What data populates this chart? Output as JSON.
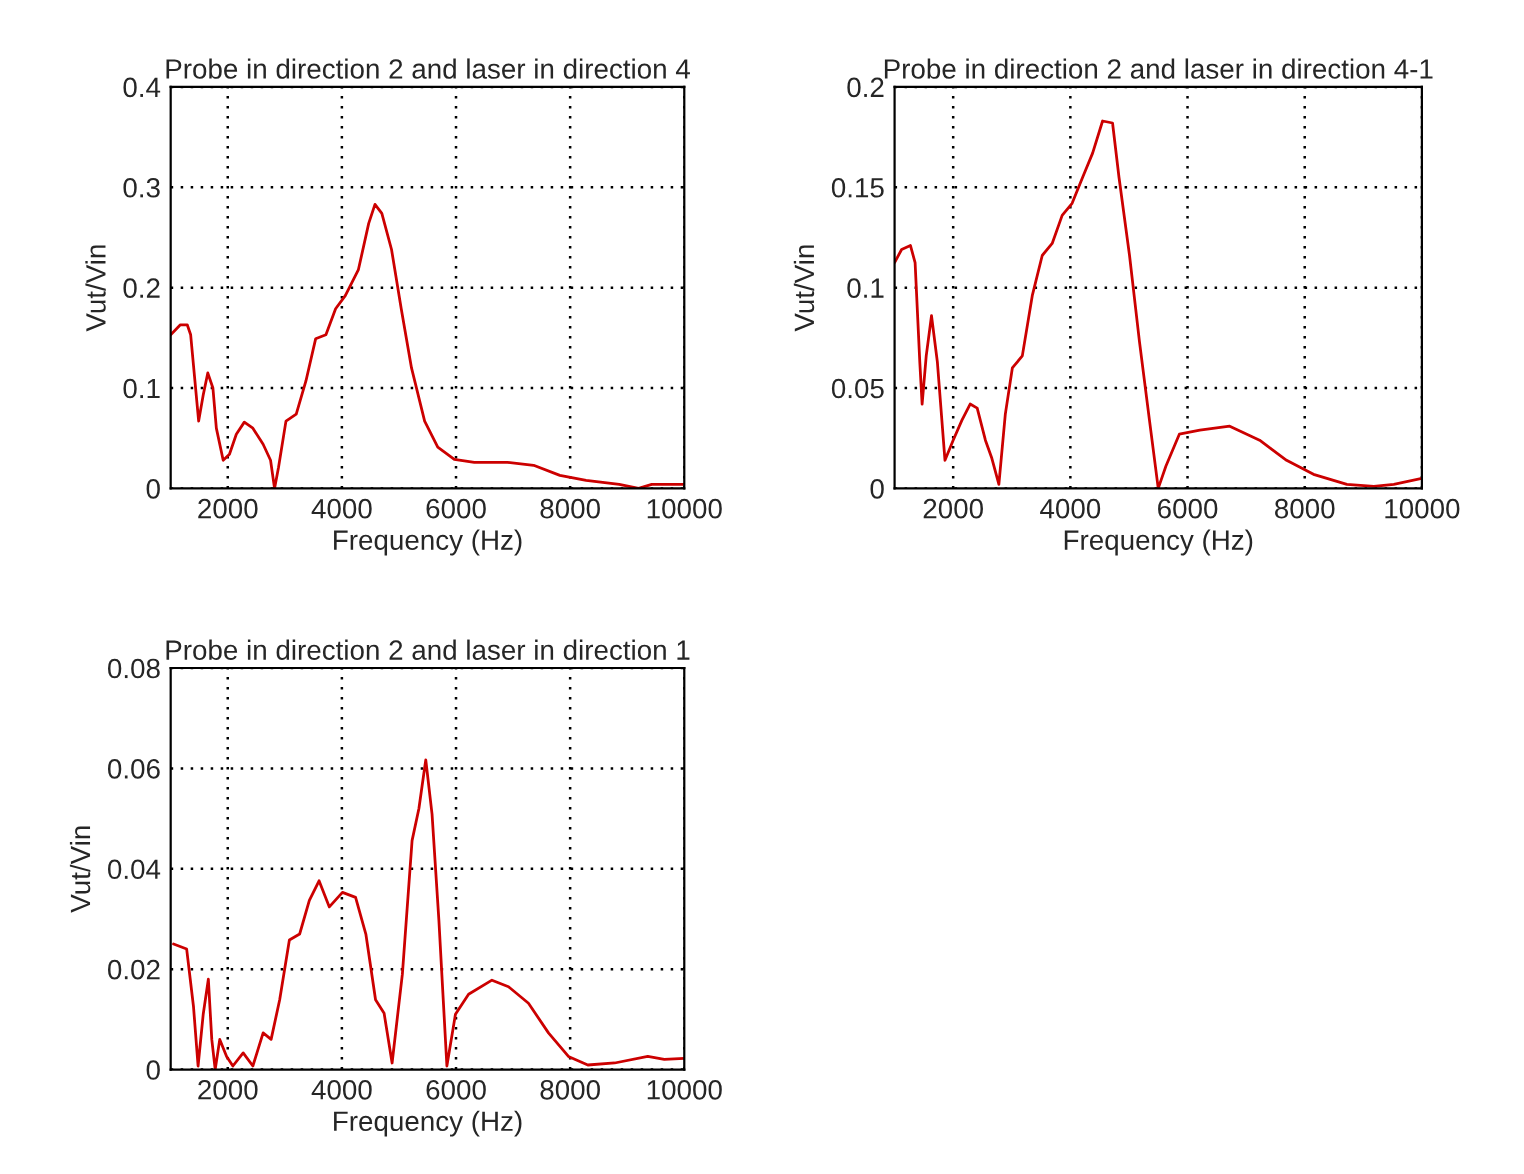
{
  "chart_data": [
    {
      "type": "line",
      "title": "Probe in direction 2 and laser in direction 4",
      "xlabel": "Frequency (Hz)",
      "ylabel": "Vut/Vin",
      "xlim": [
        1000,
        10000
      ],
      "xticks": [
        2000,
        4000,
        6000,
        8000,
        10000
      ],
      "ylim": [
        0,
        0.4
      ],
      "yticks": [
        0,
        0.1,
        0.2,
        0.3,
        0.4
      ],
      "grid": true,
      "line_style": "solid",
      "marker": "none",
      "series": [
        {
          "color": "#cc0000",
          "x": [
            1000,
            1170,
            1290,
            1350,
            1490,
            1570,
            1650,
            1740,
            1800,
            1920,
            2030,
            2150,
            2290,
            2440,
            2620,
            2750,
            2820,
            2890,
            3020,
            3200,
            3370,
            3540,
            3720,
            3890,
            4060,
            4290,
            4470,
            4580,
            4700,
            4870,
            5040,
            5220,
            5450,
            5680,
            5970,
            6320,
            6900,
            7360,
            7820,
            8280,
            8860,
            9200,
            9430,
            10000
          ],
          "values": [
            0.153,
            0.163,
            0.163,
            0.153,
            0.067,
            0.093,
            0.115,
            0.1,
            0.06,
            0.028,
            0.034,
            0.054,
            0.066,
            0.06,
            0.044,
            0.028,
            0.0,
            0.021,
            0.067,
            0.074,
            0.107,
            0.149,
            0.153,
            0.179,
            0.192,
            0.218,
            0.264,
            0.283,
            0.274,
            0.238,
            0.179,
            0.12,
            0.067,
            0.041,
            0.029,
            0.026,
            0.026,
            0.023,
            0.013,
            0.008,
            0.004,
            0.0,
            0.004,
            0.004
          ]
        }
      ]
    },
    {
      "type": "line",
      "title": "Probe in direction 2 and laser in direction 4-1",
      "xlabel": "Frequency (Hz)",
      "ylabel": "Vut/Vin",
      "xlim": [
        1000,
        10000
      ],
      "xticks": [
        2000,
        4000,
        6000,
        8000,
        10000
      ],
      "ylim": [
        0,
        0.2
      ],
      "yticks": [
        0,
        0.05,
        0.1,
        0.15,
        0.2
      ],
      "grid": true,
      "line_style": "solid",
      "marker": "none",
      "series": [
        {
          "color": "#cc0000",
          "x": [
            1000,
            1120,
            1270,
            1350,
            1430,
            1470,
            1540,
            1630,
            1730,
            1860,
            2000,
            2150,
            2290,
            2410,
            2550,
            2660,
            2780,
            2890,
            3010,
            3180,
            3350,
            3520,
            3690,
            3860,
            4030,
            4210,
            4380,
            4550,
            4720,
            4830,
            5010,
            5180,
            5350,
            5500,
            5630,
            5860,
            6210,
            6720,
            7230,
            7690,
            8150,
            8720,
            9180,
            9520,
            10000
          ],
          "values": [
            0.1125,
            0.119,
            0.121,
            0.1125,
            0.063,
            0.042,
            0.066,
            0.086,
            0.063,
            0.014,
            0.024,
            0.034,
            0.042,
            0.04,
            0.024,
            0.015,
            0.002,
            0.037,
            0.06,
            0.066,
            0.096,
            0.116,
            0.122,
            0.136,
            0.142,
            0.155,
            0.167,
            0.183,
            0.182,
            0.155,
            0.116,
            0.073,
            0.034,
            0.0,
            0.011,
            0.027,
            0.029,
            0.031,
            0.024,
            0.014,
            0.007,
            0.002,
            0.001,
            0.002,
            0.005
          ]
        }
      ]
    },
    {
      "type": "line",
      "title": "Probe in direction 2 and laser in direction 1",
      "xlabel": "Frequency (Hz)",
      "ylabel": "Vut/Vin",
      "xlim": [
        1000,
        10000
      ],
      "xticks": [
        2000,
        4000,
        6000,
        8000,
        10000
      ],
      "ylim": [
        0,
        0.08
      ],
      "yticks": [
        0,
        0.02,
        0.04,
        0.06,
        0.08
      ],
      "grid": true,
      "line_style": "solid",
      "marker": "none",
      "series": [
        {
          "color": "#cc0000",
          "x": [
            1050,
            1280,
            1400,
            1480,
            1570,
            1660,
            1720,
            1780,
            1860,
            1980,
            2090,
            2270,
            2440,
            2620,
            2760,
            2910,
            3080,
            3260,
            3430,
            3600,
            3780,
            4010,
            4240,
            4420,
            4590,
            4740,
            4880,
            5060,
            5230,
            5350,
            5470,
            5580,
            5700,
            5840,
            5990,
            6220,
            6630,
            6920,
            7270,
            7620,
            7970,
            8310,
            8780,
            9360,
            9650,
            10000
          ],
          "values": [
            0.025,
            0.024,
            0.0125,
            0.0007,
            0.011,
            0.018,
            0.006,
            0.0,
            0.006,
            0.0026,
            0.0007,
            0.0033,
            0.0007,
            0.0073,
            0.006,
            0.0139,
            0.0258,
            0.027,
            0.0337,
            0.0376,
            0.0324,
            0.0353,
            0.0343,
            0.027,
            0.0139,
            0.0112,
            0.0013,
            0.019,
            0.0456,
            0.052,
            0.0617,
            0.0509,
            0.0297,
            0.0007,
            0.011,
            0.015,
            0.0178,
            0.0165,
            0.0132,
            0.0073,
            0.0026,
            0.0009,
            0.0013,
            0.0026,
            0.002,
            0.0022
          ]
        }
      ]
    }
  ]
}
